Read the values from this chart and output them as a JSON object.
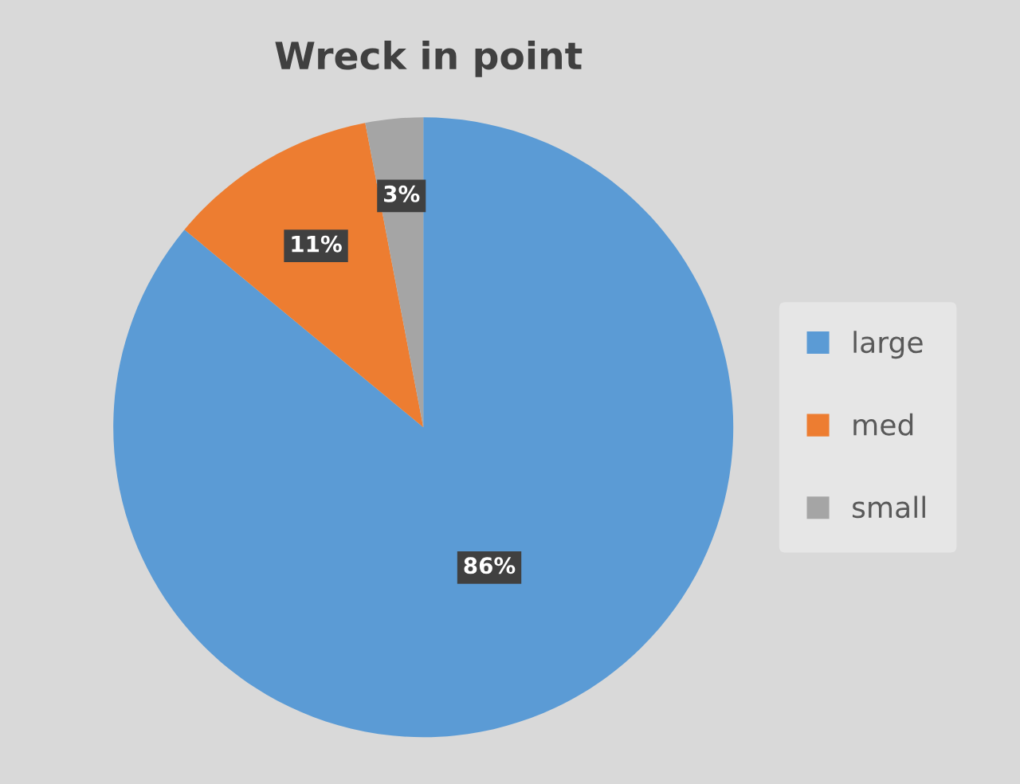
{
  "chart_data": {
    "type": "pie",
    "title": "Wreck in point",
    "categories": [
      "large",
      "med",
      "small"
    ],
    "values": [
      86,
      11,
      3
    ],
    "colors": [
      "#5b9bd5",
      "#ed7d31",
      "#a5a5a5"
    ],
    "value_labels": [
      "86%",
      "11%",
      "3%"
    ],
    "legend": "right"
  }
}
